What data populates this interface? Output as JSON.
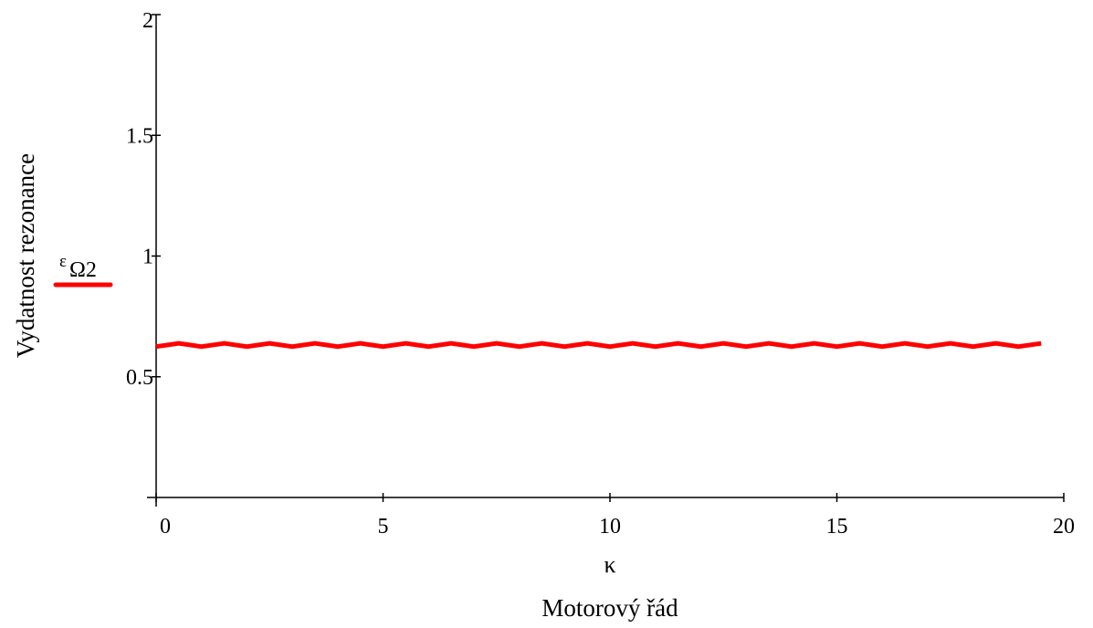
{
  "chart_data": {
    "type": "line",
    "xlabel_symbol": "κ",
    "xlabel": "Motorový řád",
    "ylabel": "Vydatnost rezonance",
    "xlim": [
      0,
      20
    ],
    "ylim": [
      0,
      2
    ],
    "x_ticks": [
      "0",
      "5",
      "10",
      "15",
      "20"
    ],
    "y_ticks": [
      "0.5",
      "1",
      "1.5",
      "2"
    ],
    "grid": false,
    "legend": {
      "position": "left",
      "label_base": "ε",
      "label_sub": "Ω2"
    },
    "series": [
      {
        "name": "εΩ2",
        "color": "#ff0000",
        "x": [
          0,
          0.5,
          1,
          1.5,
          2,
          2.5,
          3,
          3.5,
          4,
          4.5,
          5,
          5.5,
          6,
          6.5,
          7,
          7.5,
          8,
          8.5,
          9,
          9.5,
          10,
          10.5,
          11,
          11.5,
          12,
          12.5,
          13,
          13.5,
          14,
          14.5,
          15,
          15.5,
          16,
          16.5,
          17,
          17.5,
          18,
          18.5,
          19,
          19.5
        ],
        "y": [
          0.625,
          0.638,
          0.625,
          0.638,
          0.625,
          0.638,
          0.625,
          0.638,
          0.625,
          0.638,
          0.625,
          0.638,
          0.625,
          0.638,
          0.625,
          0.638,
          0.625,
          0.638,
          0.625,
          0.638,
          0.625,
          0.638,
          0.625,
          0.638,
          0.625,
          0.638,
          0.625,
          0.638,
          0.625,
          0.638,
          0.625,
          0.638,
          0.625,
          0.638,
          0.625,
          0.638,
          0.625,
          0.638,
          0.625,
          0.638
        ]
      }
    ]
  }
}
